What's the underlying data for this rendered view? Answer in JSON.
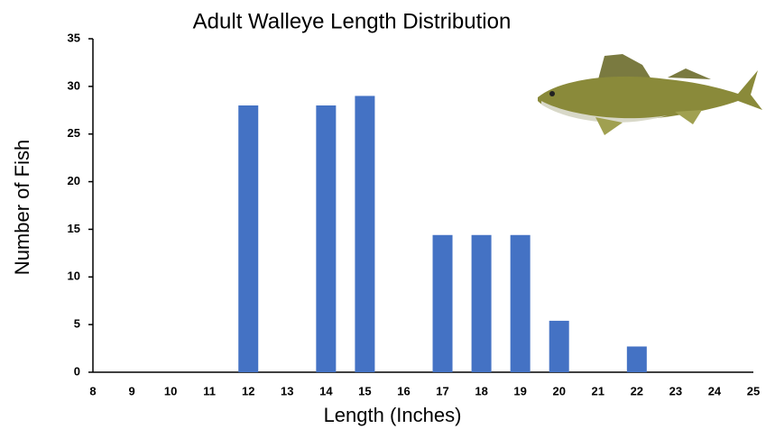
{
  "chart_data": {
    "type": "bar",
    "title": "Adult Walleye Length Distribution",
    "x_label": "Length (Inches)",
    "y_label": "Number of Fish",
    "categories": [
      "8",
      "9",
      "10",
      "11",
      "12",
      "13",
      "14",
      "15",
      "16",
      "17",
      "18",
      "19",
      "20",
      "21",
      "22",
      "23",
      "24",
      "25"
    ],
    "values": [
      0,
      0,
      0,
      0,
      28,
      0,
      28,
      29,
      0,
      14.4,
      14.4,
      14.4,
      5.4,
      0,
      2.7,
      0,
      0,
      0
    ],
    "color": "#4472c4",
    "ylim": [
      0,
      35
    ],
    "yticks": [
      0,
      5,
      10,
      15,
      20,
      25,
      30,
      35
    ],
    "grid": false
  }
}
